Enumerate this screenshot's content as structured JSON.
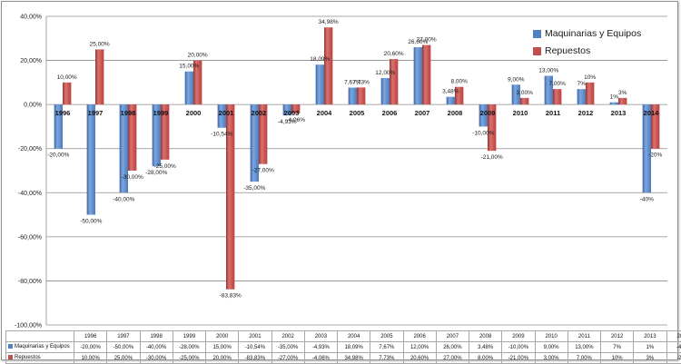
{
  "chart_data": {
    "type": "bar",
    "categories": [
      "1996",
      "1997",
      "1998",
      "1999",
      "2000",
      "2001",
      "2002",
      "2003",
      "2004",
      "2005",
      "2006",
      "2007",
      "2008",
      "2009",
      "2010",
      "2011",
      "2012",
      "2013",
      "2014"
    ],
    "series": [
      {
        "name": "Maquinarias y Equipos",
        "color": "#4f81bd",
        "values": [
          -20,
          -50,
          -40,
          -28,
          15,
          -10.54,
          -35,
          -4.93,
          18.09,
          7.67,
          12,
          26,
          3.48,
          -10,
          9,
          13,
          7,
          1,
          -40
        ],
        "labels": [
          "-20,00%",
          "-50,00%",
          "-40,00%",
          "-28,00%",
          "15,00%",
          "-10,54%",
          "-35,00%",
          "-4,93%",
          "18,09%",
          "7,67%",
          "12,00%",
          "26,00%",
          "3,48%",
          "-10,00%",
          "9,00%",
          "13,00%",
          "7%",
          "1%",
          "-40%"
        ]
      },
      {
        "name": "Repuestos",
        "color": "#c0504d",
        "values": [
          10,
          25,
          -30,
          -25,
          20,
          -83.83,
          -27,
          -4.06,
          34.98,
          7.73,
          20.6,
          27,
          8,
          -21,
          3,
          7,
          10,
          3,
          -20
        ],
        "labels": [
          "10,00%",
          "25,00%",
          "-30,00%",
          "-25,00%",
          "20,00%",
          "-83,83%",
          "-27,00%",
          "-4,06%",
          "34,98%",
          "7,73%",
          "20,60%",
          "27,00%",
          "8,00%",
          "-21,00%",
          "3,00%",
          "7,00%",
          "10%",
          "3%",
          "-20%"
        ]
      }
    ],
    "ylim": [
      -100,
      40
    ],
    "yticks": [
      "-100,00%",
      "-80,00%",
      "-60,00%",
      "-40,00%",
      "-20,00%",
      "0,00%",
      "20,00%",
      "40,00%"
    ],
    "grid": true,
    "legend": "top-right",
    "data_table": true
  }
}
